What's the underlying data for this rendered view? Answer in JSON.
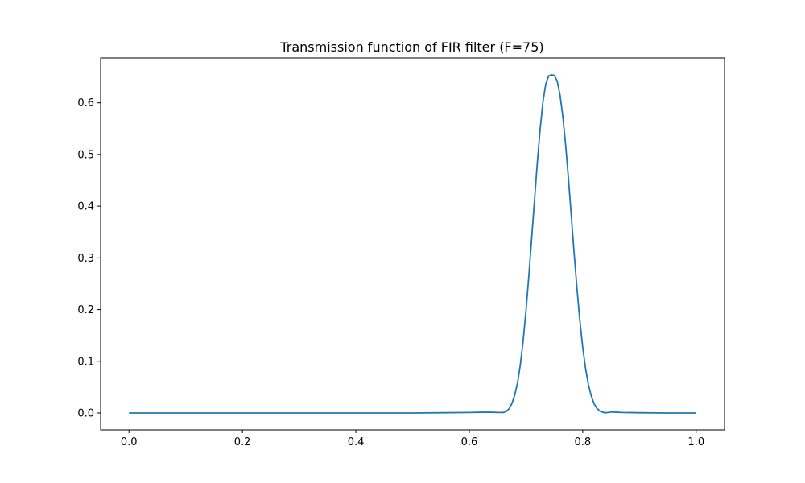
{
  "chart_data": {
    "type": "line",
    "title": "Transmission function of FIR filter (F=75)",
    "xlabel": "",
    "ylabel": "",
    "xlim": [
      -0.05,
      1.05
    ],
    "ylim": [
      -0.0327,
      0.6867
    ],
    "xticks": [
      0.0,
      0.2,
      0.4,
      0.6,
      0.8,
      1.0
    ],
    "xtick_labels": [
      "0.0",
      "0.2",
      "0.4",
      "0.6",
      "0.8",
      "1.0"
    ],
    "yticks": [
      0.0,
      0.1,
      0.2,
      0.3,
      0.4,
      0.5,
      0.6
    ],
    "ytick_labels": [
      "0.0",
      "0.1",
      "0.2",
      "0.3",
      "0.4",
      "0.5",
      "0.6"
    ],
    "grid": false,
    "line_color": "#1f77b4",
    "series": [
      {
        "x": [
          0.0,
          0.1,
          0.2,
          0.3,
          0.4,
          0.5,
          0.55,
          0.6,
          0.62,
          0.64,
          0.65,
          0.66,
          0.665,
          0.67,
          0.675,
          0.68,
          0.685,
          0.69,
          0.695,
          0.7,
          0.705,
          0.71,
          0.715,
          0.72,
          0.725,
          0.73,
          0.735,
          0.74,
          0.745,
          0.75,
          0.755,
          0.76,
          0.765,
          0.77,
          0.775,
          0.78,
          0.785,
          0.79,
          0.795,
          0.8,
          0.805,
          0.81,
          0.815,
          0.82,
          0.825,
          0.83,
          0.835,
          0.84,
          0.845,
          0.85,
          0.86,
          0.87,
          0.9,
          0.95,
          1.0
        ],
        "y": [
          0.0,
          0.0,
          0.0,
          0.0,
          0.0,
          0.0,
          0.0005,
          0.001,
          0.0015,
          0.0015,
          0.001,
          0.001,
          0.003,
          0.008,
          0.018,
          0.034,
          0.058,
          0.093,
          0.14,
          0.198,
          0.265,
          0.338,
          0.412,
          0.485,
          0.55,
          0.603,
          0.637,
          0.652,
          0.654,
          0.653,
          0.642,
          0.615,
          0.573,
          0.517,
          0.451,
          0.379,
          0.307,
          0.239,
          0.178,
          0.127,
          0.086,
          0.055,
          0.033,
          0.018,
          0.009,
          0.004,
          0.0015,
          0.0005,
          0.001,
          0.002,
          0.0015,
          0.001,
          0.0005,
          0.0,
          0.0
        ]
      }
    ]
  }
}
